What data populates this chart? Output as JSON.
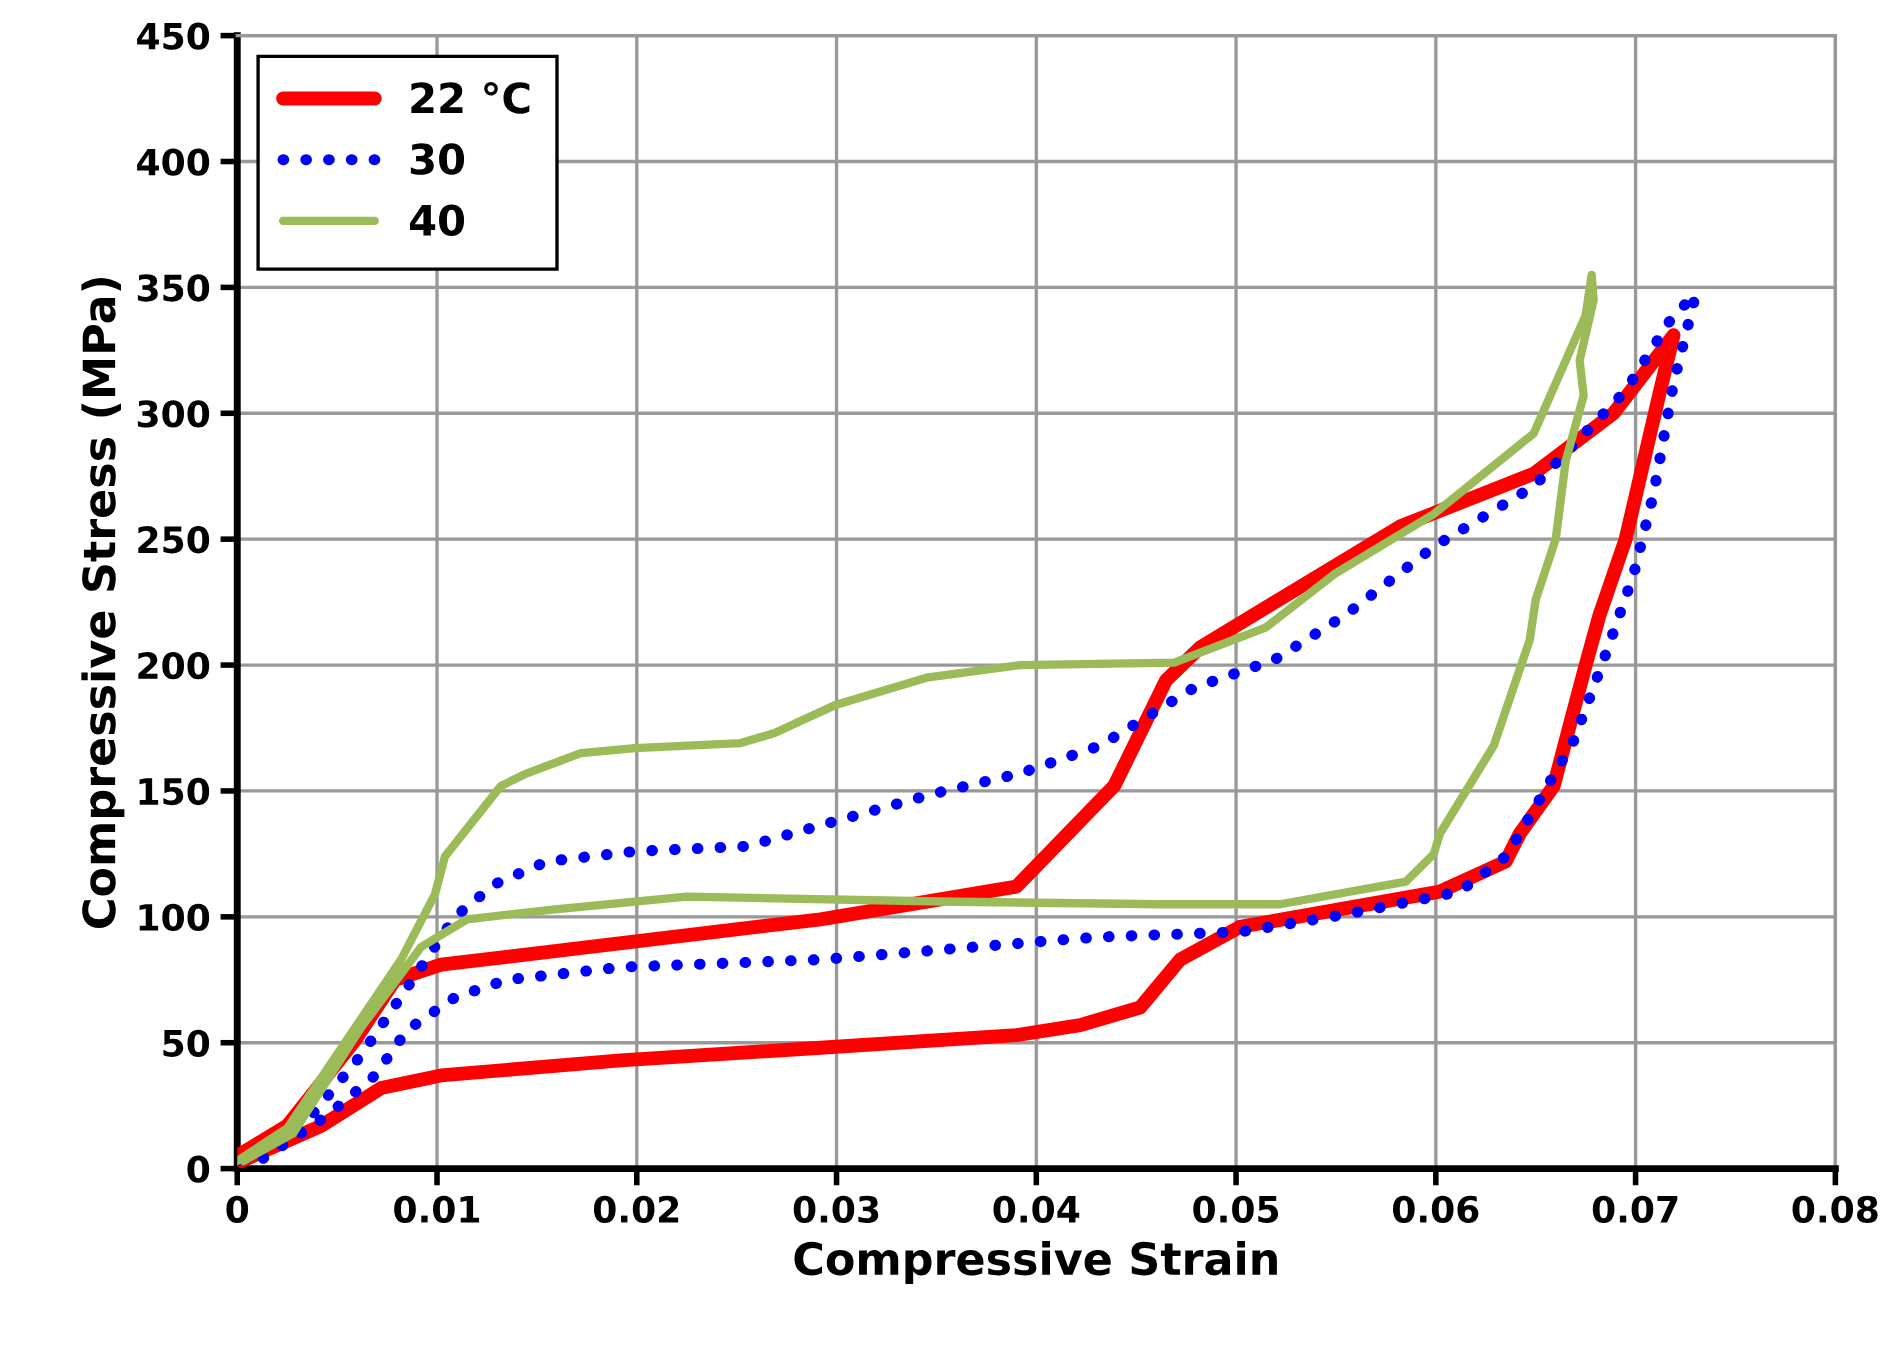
{
  "chart_data": {
    "type": "line",
    "xlabel": "Compressive Strain",
    "ylabel": "Compressive Stress (MPa)",
    "xlim": [
      0,
      0.08
    ],
    "ylim": [
      0,
      450
    ],
    "xticks": [
      0,
      0.01,
      0.02,
      0.03,
      0.04,
      0.05,
      0.06,
      0.07,
      0.08
    ],
    "yticks": [
      0,
      50,
      100,
      150,
      200,
      250,
      300,
      350,
      400,
      450
    ],
    "grid": true,
    "legend": "top left",
    "marker": "none",
    "series": [
      {
        "name": "22 °C",
        "color": "#ff0000",
        "line_style": "solid",
        "x": [
          0,
          0.0025,
          0.0059,
          0.0079,
          0.0102,
          0.0292,
          0.039,
          0.0439,
          0.0465,
          0.0482,
          0.0582,
          0.0649,
          0.0689,
          0.0719,
          0.0712,
          0.0695,
          0.0682,
          0.0675,
          0.0659,
          0.0642,
          0.0635,
          0.0602,
          0.0502,
          0.0472,
          0.0452,
          0.0422,
          0.039,
          0.0292,
          0.0192,
          0.0102,
          0.0072,
          0.0042,
          0.0002
        ],
        "values": [
          5,
          17,
          51,
          75,
          81,
          99,
          112,
          152,
          194,
          207,
          255,
          276,
          300,
          331,
          308,
          250,
          220,
          200,
          152,
          133,
          122,
          110,
          96,
          83,
          64,
          57,
          53,
          48,
          43,
          37,
          32,
          17,
          3
        ]
      },
      {
        "name": "30",
        "color": "#0000ff",
        "line_style": "dotted",
        "x": [
          0,
          0.0035,
          0.0062,
          0.0092,
          0.0109,
          0.0129,
          0.0155,
          0.0199,
          0.0255,
          0.0295,
          0.0349,
          0.0392,
          0.0432,
          0.0479,
          0.0519,
          0.0555,
          0.0599,
          0.0649,
          0.0695,
          0.0719,
          0.073,
          0.0719,
          0.0709,
          0.0699,
          0.0684,
          0.0669,
          0.0642,
          0.0635,
          0.0612,
          0.0555,
          0.0502,
          0.0432,
          0.0415,
          0.0292,
          0.0192,
          0.0135,
          0.0109,
          0.0085,
          0.0069,
          0.0045,
          0.0009
        ],
        "values": [
          3,
          19,
          45,
          80,
          100,
          113,
          122,
          126,
          128,
          137,
          149,
          157,
          168,
          191,
          202,
          220,
          247,
          271,
          309,
          339,
          347,
          312,
          268,
          236,
          202,
          170,
          133,
          124,
          110,
          101,
          94,
          92,
          91,
          83,
          80,
          75,
          68,
          55,
          37,
          21,
          2
        ]
      },
      {
        "name": "40",
        "color": "#9bbb59",
        "line_style": "solid",
        "x": [
          0,
          0.0025,
          0.0059,
          0.0082,
          0.0099,
          0.0104,
          0.0132,
          0.0145,
          0.0172,
          0.0199,
          0.0252,
          0.0269,
          0.0299,
          0.0345,
          0.0392,
          0.0469,
          0.0515,
          0.0549,
          0.0599,
          0.0649,
          0.0675,
          0.0678,
          0.0679,
          0.0672,
          0.0674,
          0.0665,
          0.066,
          0.065,
          0.0647,
          0.0629,
          0.0602,
          0.0599,
          0.0585,
          0.0522,
          0.0462,
          0.0359,
          0.0225,
          0.0159,
          0.0115,
          0.0092,
          0.0062,
          0.0028,
          0.0003
        ],
        "values": [
          3,
          16,
          56,
          83,
          109,
          124,
          152,
          157,
          165,
          167,
          169,
          173,
          184,
          195,
          200,
          201,
          215,
          236,
          260,
          292,
          339,
          355,
          345,
          321,
          307,
          281,
          250,
          226,
          210,
          168,
          133,
          125,
          114,
          105,
          105,
          106,
          108,
          103,
          99,
          88,
          56,
          14,
          3
        ]
      }
    ]
  }
}
